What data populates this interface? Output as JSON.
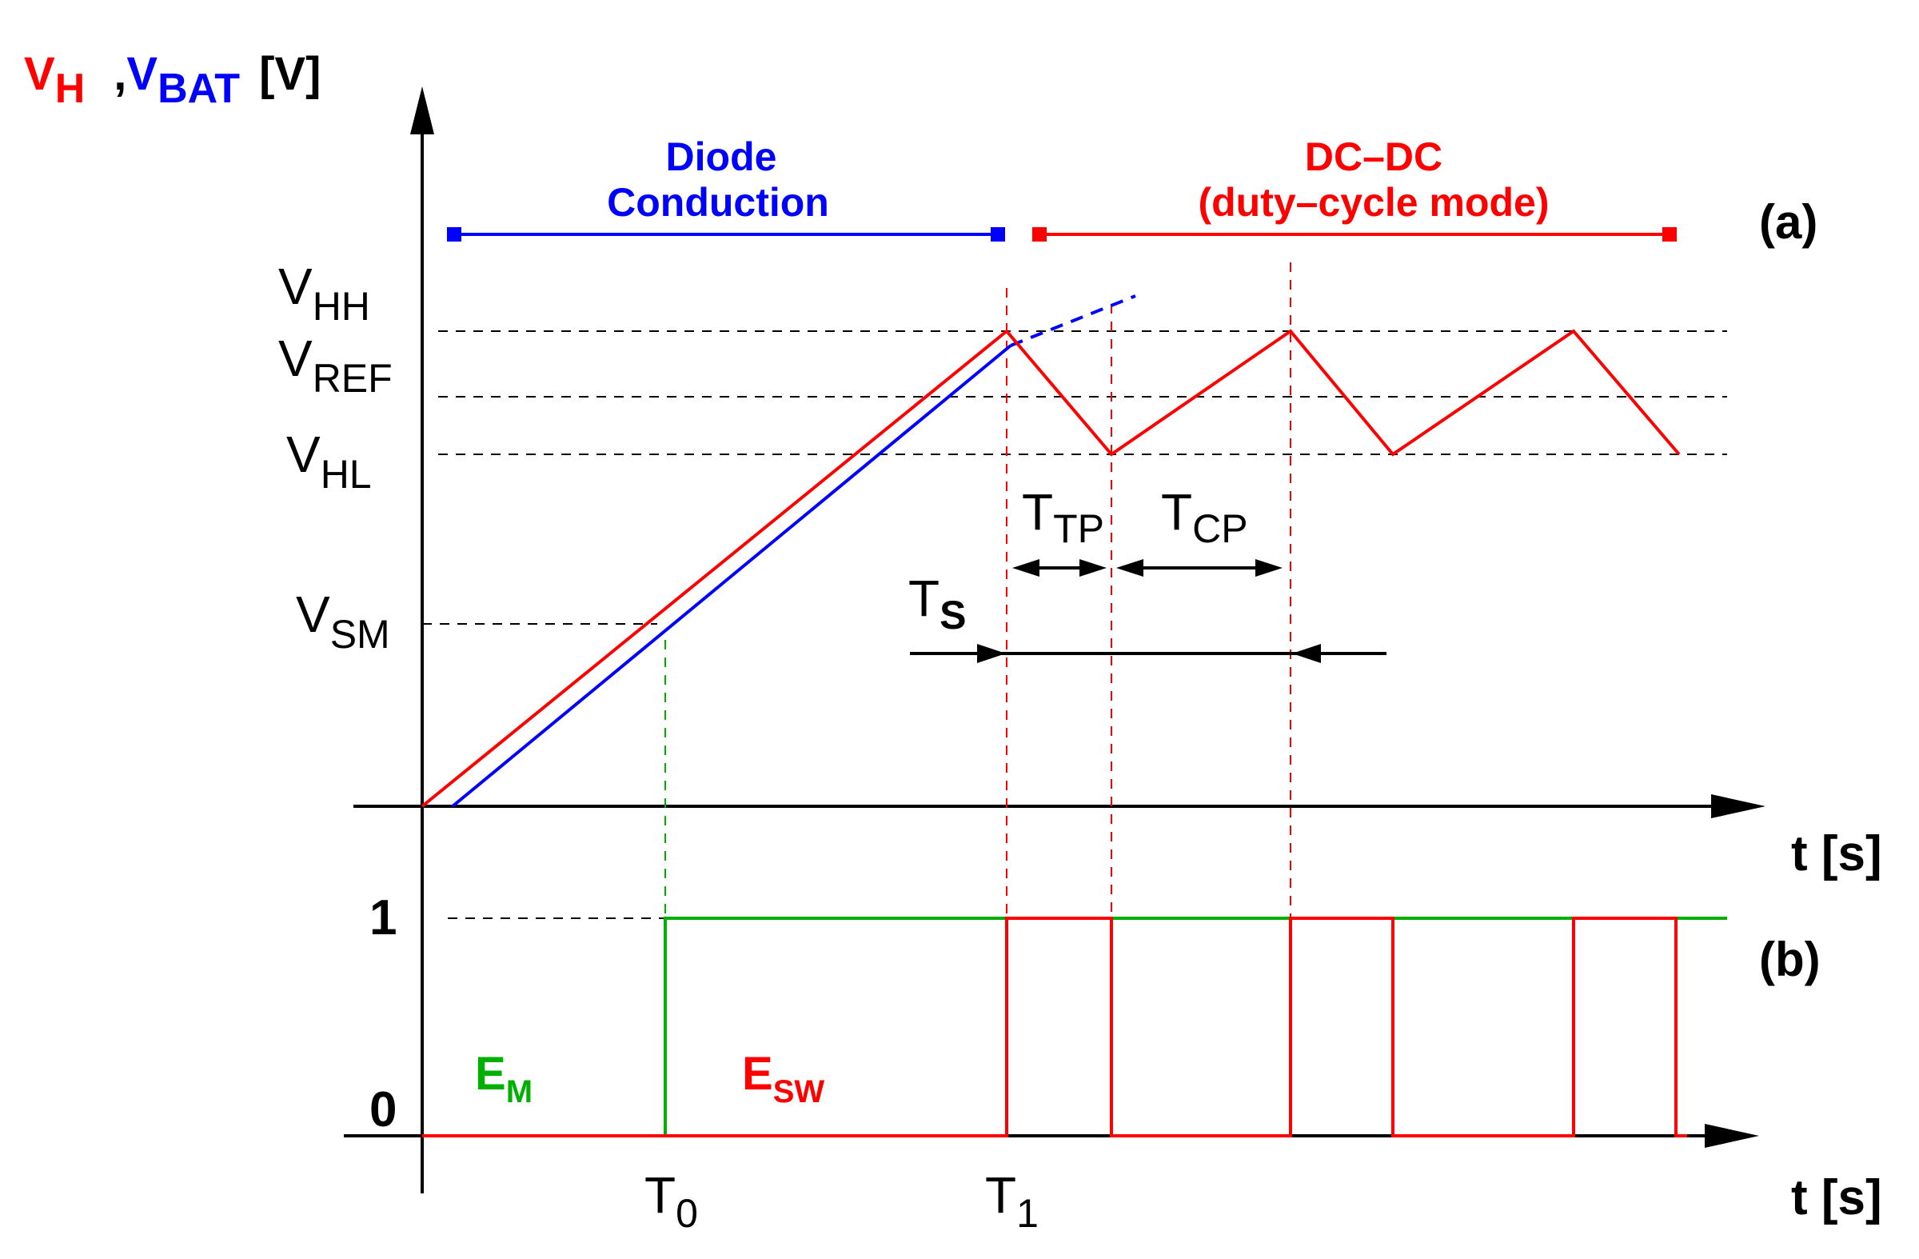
{
  "colors": {
    "vh": "#ff0000",
    "vbat": "#0000ff",
    "em": "#00b000",
    "esw": "#ff0000",
    "axis": "#000000"
  },
  "y_axis_label": {
    "vh": "V",
    "vh_sub": "H",
    "sep": ",",
    "vbat": "V",
    "vbat_sub": "BAT",
    "unit": "[V]"
  },
  "levels": {
    "vhh": {
      "main": "V",
      "sub": "HH"
    },
    "vref": {
      "main": "V",
      "sub": "REF"
    },
    "vhl": {
      "main": "V",
      "sub": "HL"
    },
    "vsm": {
      "main": "V",
      "sub": "SM"
    }
  },
  "phases": {
    "diode": {
      "line1": "Diode",
      "line2": "Conduction"
    },
    "dcdc": {
      "line1": "DC–DC",
      "line2": "(duty–cycle mode)"
    }
  },
  "panel_labels": {
    "a": "(a)",
    "b": "(b)"
  },
  "time_axis_label": "t [s]",
  "intervals": {
    "ttp": {
      "main": "T",
      "sub": "TP"
    },
    "tcp": {
      "main": "T",
      "sub": "CP"
    },
    "ts": {
      "main": "T",
      "sub": "S"
    }
  },
  "logic_levels": {
    "one": "1",
    "zero": "0"
  },
  "signals": {
    "em": {
      "main": "E",
      "sub": "M"
    },
    "esw": {
      "main": "E",
      "sub": "SW"
    }
  },
  "time_marks": {
    "t0": {
      "main": "T",
      "sub": "0"
    },
    "t1": {
      "main": "T",
      "sub": "1"
    }
  }
}
